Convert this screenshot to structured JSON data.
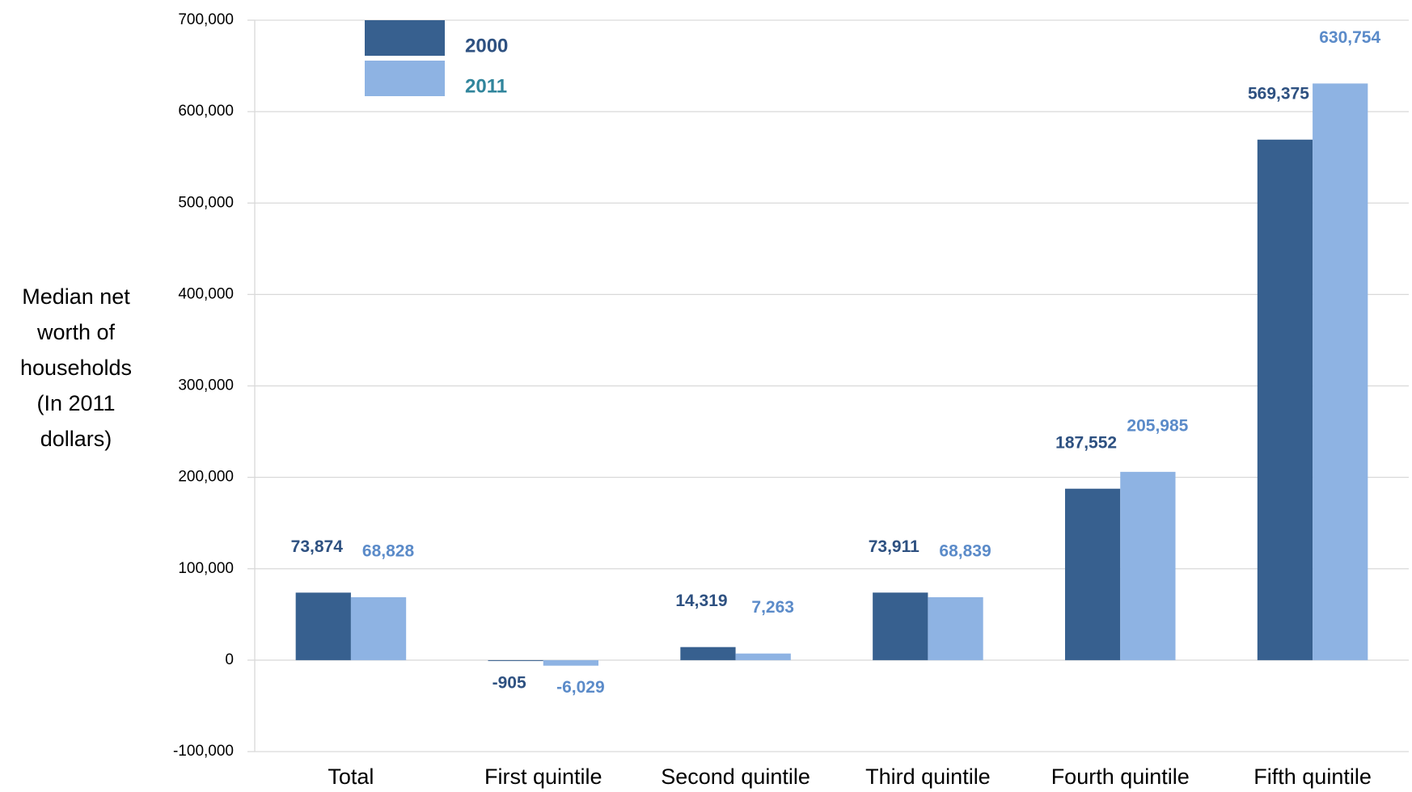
{
  "chart_data": {
    "type": "bar",
    "y_label": "Median net worth of households (In 2011 dollars)",
    "categories": [
      "Total",
      "First quintile",
      "Second quintile",
      "Third quintile",
      "Fourth quintile",
      "Fifth quintile"
    ],
    "series": [
      {
        "name": "2000",
        "color": "#37608f",
        "label_color": "#2e5181",
        "values": [
          73874,
          -905,
          14319,
          73911,
          187552,
          569375
        ],
        "value_labels": [
          "73,874",
          "-905",
          "14,319",
          "73,911",
          "187,552",
          "569,375"
        ]
      },
      {
        "name": "2011",
        "color": "#8eb3e3",
        "label_color": "#5b8bc9",
        "values": [
          68828,
          -6029,
          7263,
          68839,
          205985,
          630754
        ],
        "value_labels": [
          "68,828",
          "-6,029",
          "7,263",
          "68,839",
          "205,985",
          "630,754"
        ]
      }
    ],
    "legend_label_colors": [
      "#2e5181",
      "#31859c"
    ],
    "ylim": [
      -100000,
      700000
    ],
    "yticks": [
      {
        "value": -100000,
        "label": "-100,000"
      },
      0,
      {
        "value": 100000,
        "label": "100,000"
      },
      {
        "value": 200000,
        "label": "200,000"
      },
      {
        "value": 300000,
        "label": "300,000"
      },
      {
        "value": 400000,
        "label": "400,000"
      },
      {
        "value": 500000,
        "label": "500,000"
      },
      {
        "value": 600000,
        "label": "600,000"
      },
      {
        "value": 700000,
        "label": "700,000"
      }
    ],
    "grid": true,
    "legend": "top-left"
  }
}
